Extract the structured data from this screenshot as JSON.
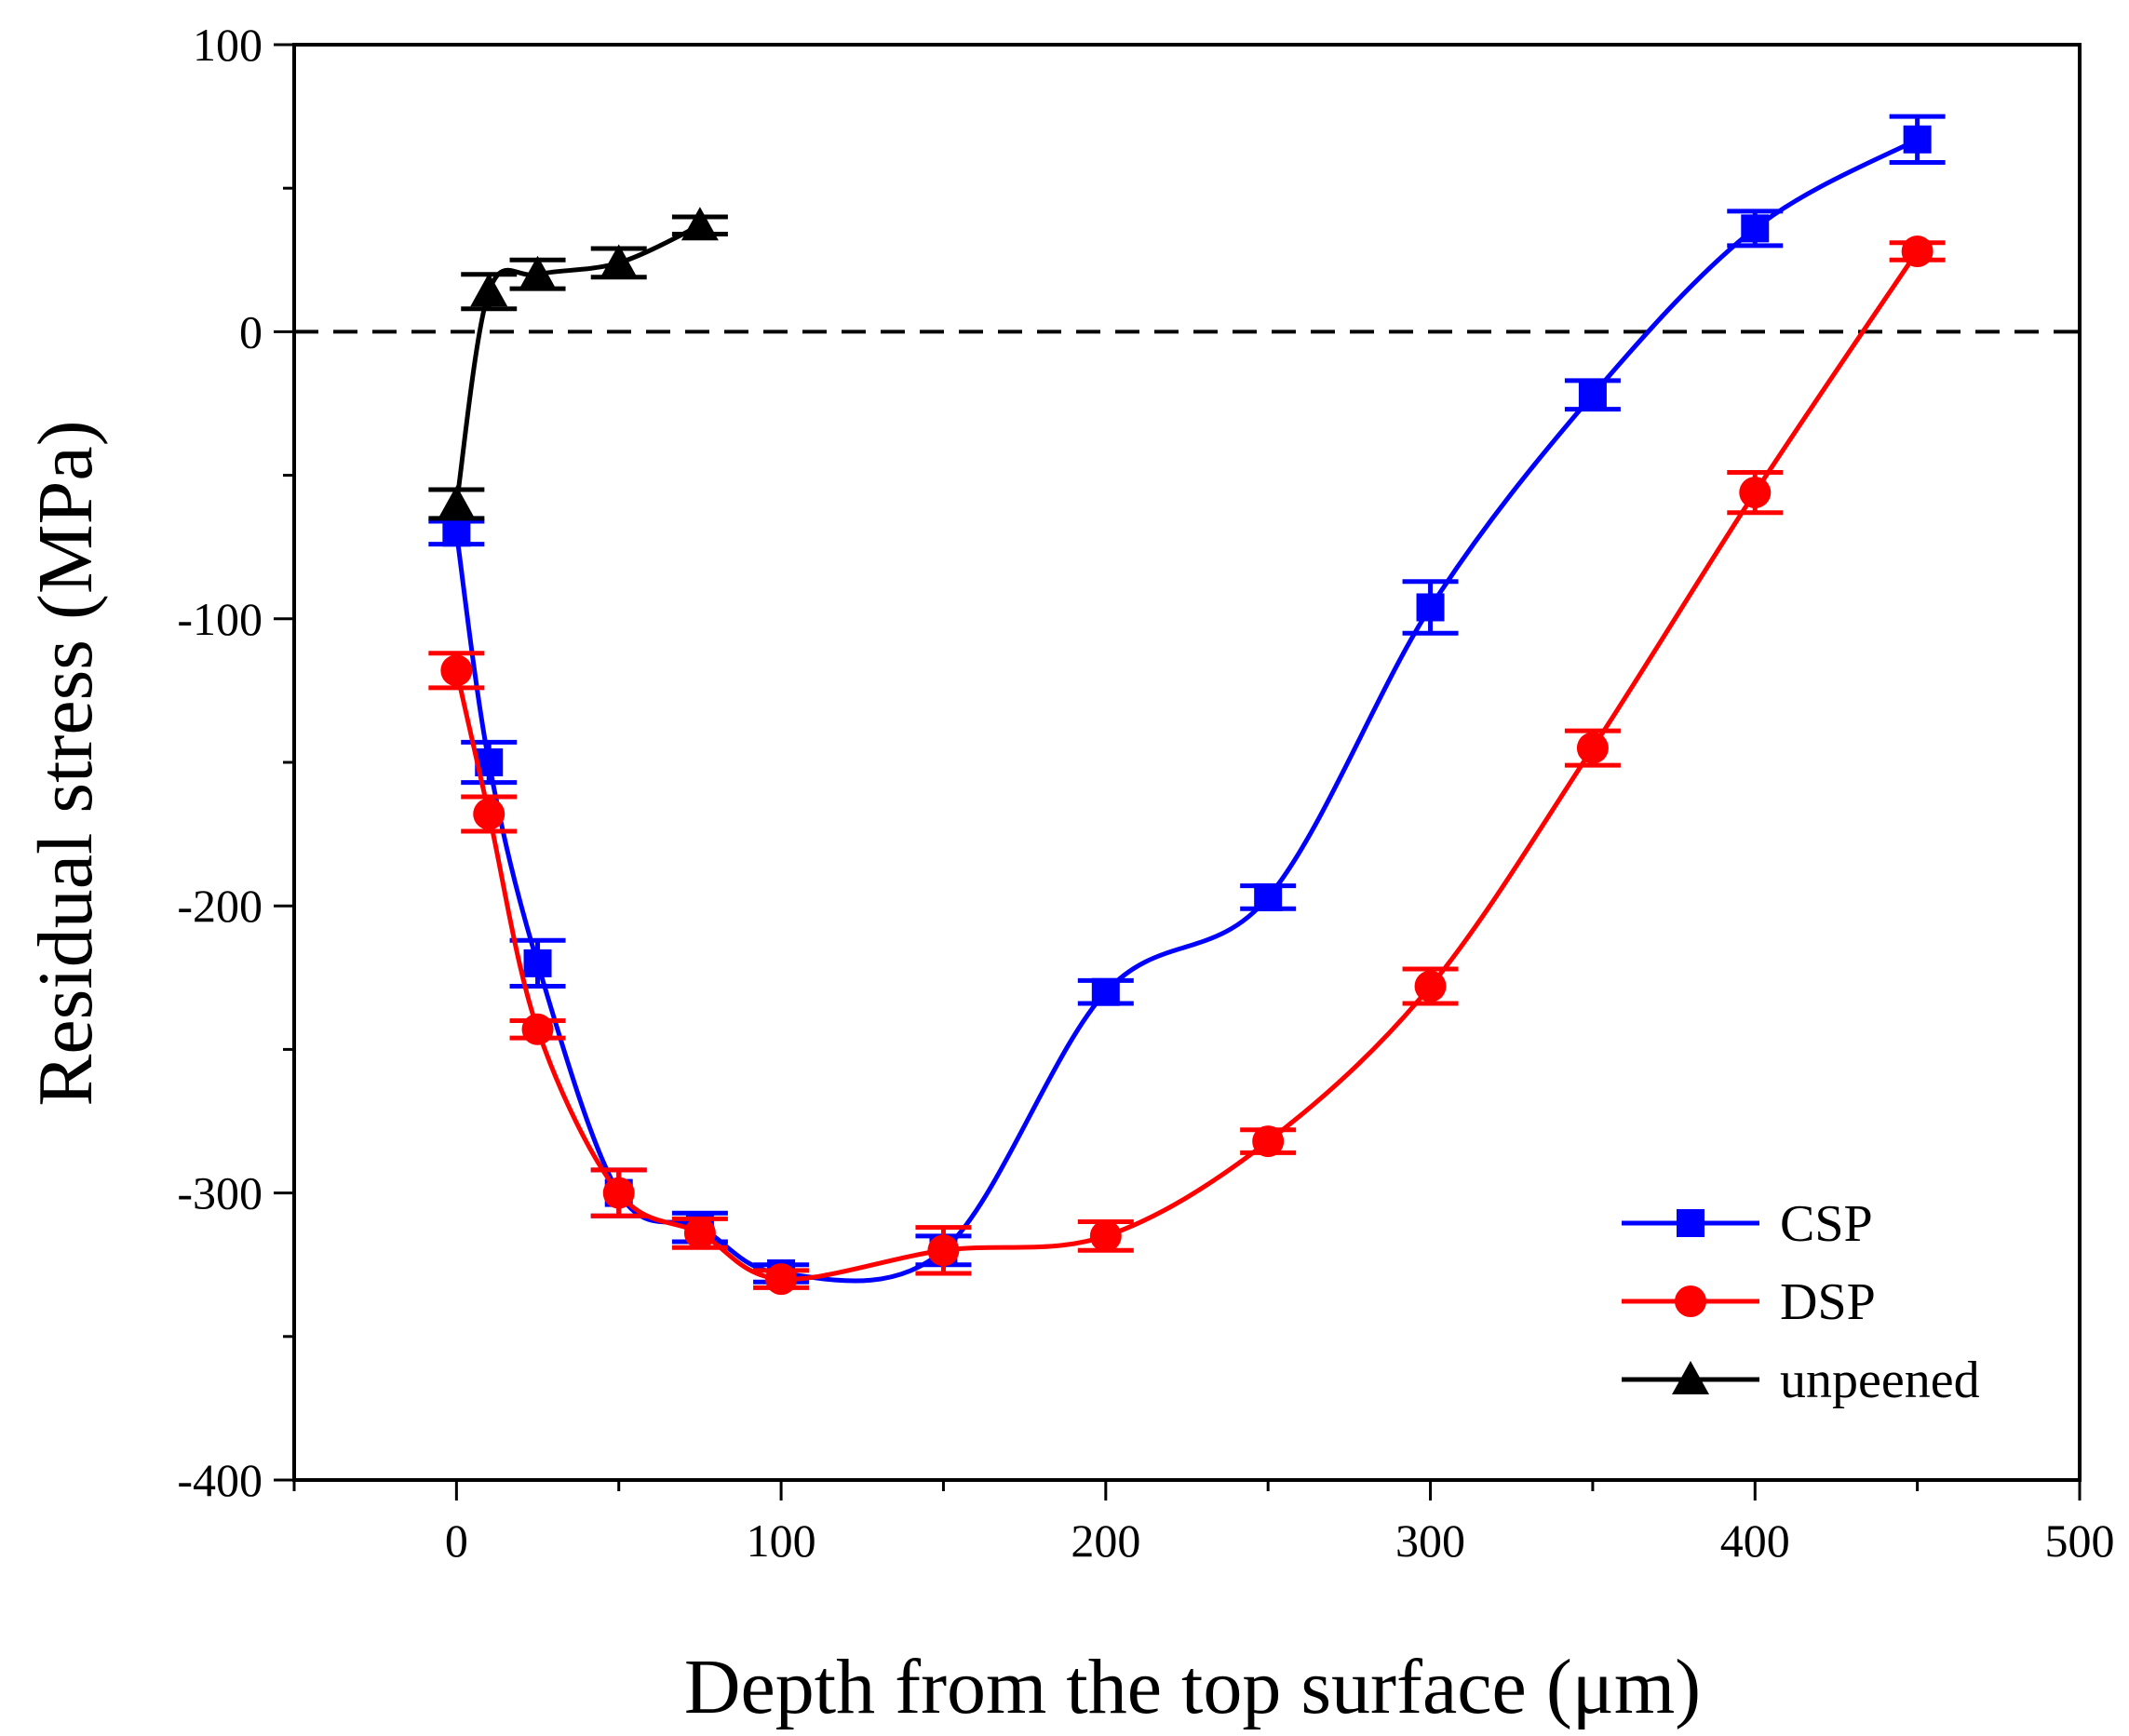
{
  "chart_data": {
    "type": "line",
    "xlabel": "Depth from the top surface (μm)",
    "ylabel": "Residual stress (MPa)",
    "xlim": [
      -50,
      500
    ],
    "ylim": [
      -400,
      100
    ],
    "xticks": [
      0,
      100,
      200,
      300,
      400,
      500
    ],
    "yticks": [
      100,
      0,
      -100,
      -200,
      -300,
      -400
    ],
    "xtick_labels": [
      "0",
      "100",
      "200",
      "300",
      "400",
      "500"
    ],
    "ytick_labels": [
      "100",
      "0",
      "-100",
      "-200",
      "-300",
      "-400"
    ],
    "zero_reference_line": {
      "y": 0,
      "style": "dashed",
      "color": "#000000"
    },
    "legend_position": "bottom-right",
    "series": [
      {
        "name": "CSP",
        "color": "#0000ff",
        "marker": "square",
        "x": [
          0,
          10,
          25,
          50,
          75,
          100,
          150,
          200,
          250,
          300,
          350,
          400,
          450
        ],
        "y": [
          -70,
          -150,
          -220,
          -300,
          -312,
          -328,
          -320,
          -230,
          -197,
          -96,
          -22,
          36,
          67
        ],
        "err": [
          4,
          7,
          8,
          8,
          5,
          3,
          5,
          4,
          4,
          9,
          5,
          6,
          8
        ]
      },
      {
        "name": "DSP",
        "color": "#ff0000",
        "marker": "circle",
        "x": [
          0,
          10,
          25,
          50,
          75,
          100,
          150,
          200,
          250,
          300,
          350,
          400,
          450
        ],
        "y": [
          -118,
          -168,
          -243,
          -300,
          -314,
          -330,
          -320,
          -315,
          -282,
          -228,
          -145,
          -56,
          28
        ],
        "err": [
          6,
          6,
          3,
          8,
          5,
          3,
          8,
          5,
          4,
          6,
          6,
          7,
          3
        ]
      },
      {
        "name": "unpeened",
        "color": "#000000",
        "marker": "triangle",
        "x": [
          0,
          10,
          25,
          50,
          75
        ],
        "y": [
          -60,
          14,
          20,
          24,
          37
        ],
        "err": [
          5,
          6,
          5,
          5,
          3
        ]
      }
    ]
  }
}
